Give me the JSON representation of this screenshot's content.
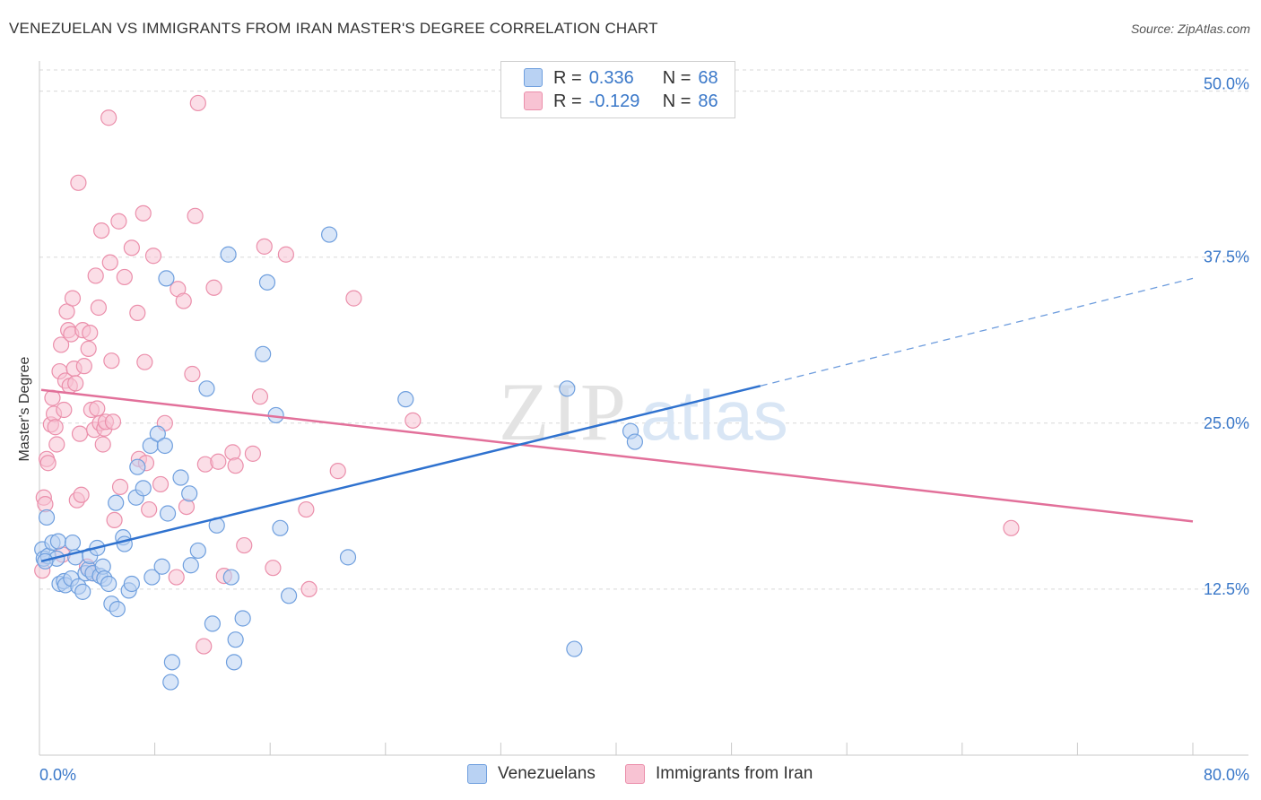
{
  "title": "VENEZUELAN VS IMMIGRANTS FROM IRAN MASTER'S DEGREE CORRELATION CHART",
  "source": "Source: ZipAtlas.com",
  "watermark": {
    "part1": "ZIP",
    "part2": "atlas"
  },
  "legend_top": [
    {
      "r_label": "R =",
      "r_value": "0.336",
      "n_label": "N =",
      "n_value": "68"
    },
    {
      "r_label": "R =",
      "r_value": "-0.129",
      "n_label": "N =",
      "n_value": "86"
    }
  ],
  "legend_bottom": [
    "Venezuelans",
    "Immigrants from Iran"
  ],
  "colors": {
    "blue_fill": "#b9d2f3",
    "blue_stroke": "#6f9fde",
    "blue_line": "#2f72cf",
    "pink_fill": "#f8c3d3",
    "pink_stroke": "#eb8fab",
    "pink_line": "#e2709a",
    "tick_label": "#3a78c9",
    "grid": "#d8d8d8"
  },
  "chart_data": {
    "type": "scatter",
    "title": "VENEZUELAN VS IMMIGRANTS FROM IRAN MASTER'S DEGREE CORRELATION CHART",
    "xlabel": "",
    "ylabel": "Master's Degree",
    "xlim": [
      0,
      80
    ],
    "ylim": [
      0,
      52
    ],
    "x_tick_labels": [
      "0.0%",
      "80.0%"
    ],
    "y_ticks": [
      12.5,
      25.0,
      37.5,
      50.0
    ],
    "y_tick_labels": [
      "12.5%",
      "25.0%",
      "37.5%",
      "50.0%"
    ],
    "grid": true,
    "legend_position": "top-center",
    "series": [
      {
        "name": "Venezuelans",
        "color": "#6f9fde",
        "r": 0.336,
        "n": 68,
        "trend": {
          "x": [
            0,
            50
          ],
          "y": [
            14.6,
            27.8
          ],
          "dashed_to": [
            80,
            35.9
          ]
        },
        "points": [
          [
            0.2,
            15.5
          ],
          [
            0.3,
            14.8
          ],
          [
            0.5,
            17.9
          ],
          [
            0.6,
            15.0
          ],
          [
            0.9,
            16.0
          ],
          [
            1.2,
            14.8
          ],
          [
            1.3,
            16.1
          ],
          [
            1.4,
            12.9
          ],
          [
            1.7,
            13.1
          ],
          [
            1.8,
            12.8
          ],
          [
            2.2,
            13.3
          ],
          [
            2.3,
            16.0
          ],
          [
            2.5,
            14.9
          ],
          [
            2.7,
            12.7
          ],
          [
            3.0,
            12.3
          ],
          [
            3.2,
            13.7
          ],
          [
            3.4,
            14.0
          ],
          [
            3.5,
            15.0
          ],
          [
            3.7,
            13.7
          ],
          [
            4.0,
            15.6
          ],
          [
            4.2,
            13.5
          ],
          [
            4.4,
            14.2
          ],
          [
            4.5,
            13.3
          ],
          [
            4.8,
            12.9
          ],
          [
            5.0,
            11.4
          ],
          [
            5.3,
            19.0
          ],
          [
            5.4,
            11.0
          ],
          [
            5.8,
            16.4
          ],
          [
            5.9,
            15.9
          ],
          [
            6.2,
            12.4
          ],
          [
            6.4,
            12.9
          ],
          [
            6.7,
            19.4
          ],
          [
            6.8,
            21.7
          ],
          [
            7.2,
            20.1
          ],
          [
            7.7,
            23.3
          ],
          [
            7.8,
            13.4
          ],
          [
            8.2,
            24.2
          ],
          [
            8.5,
            14.2
          ],
          [
            8.7,
            23.3
          ],
          [
            8.8,
            35.9
          ],
          [
            8.9,
            18.2
          ],
          [
            9.1,
            5.5
          ],
          [
            9.2,
            7.0
          ],
          [
            9.8,
            20.9
          ],
          [
            10.4,
            19.7
          ],
          [
            10.5,
            14.3
          ],
          [
            11.0,
            15.4
          ],
          [
            11.6,
            27.6
          ],
          [
            12.0,
            9.9
          ],
          [
            12.3,
            17.3
          ],
          [
            13.1,
            37.7
          ],
          [
            13.3,
            13.4
          ],
          [
            13.6,
            8.7
          ],
          [
            13.5,
            7.0
          ],
          [
            14.1,
            10.3
          ],
          [
            15.5,
            30.2
          ],
          [
            15.8,
            35.6
          ],
          [
            16.4,
            25.6
          ],
          [
            16.7,
            17.1
          ],
          [
            17.3,
            12.0
          ],
          [
            20.1,
            39.2
          ],
          [
            21.4,
            14.9
          ],
          [
            25.4,
            26.8
          ],
          [
            36.6,
            27.6
          ],
          [
            37.1,
            8.0
          ],
          [
            41.0,
            24.4
          ],
          [
            41.3,
            23.6
          ],
          [
            0.4,
            14.6
          ]
        ]
      },
      {
        "name": "Immigrants from Iran",
        "color": "#eb8fab",
        "r": -0.129,
        "n": 86,
        "trend": {
          "x": [
            0,
            80
          ],
          "y": [
            27.5,
            17.6
          ]
        },
        "points": [
          [
            0.2,
            13.9
          ],
          [
            0.3,
            19.4
          ],
          [
            0.4,
            18.9
          ],
          [
            0.5,
            22.3
          ],
          [
            0.6,
            22.0
          ],
          [
            0.8,
            24.9
          ],
          [
            0.9,
            26.9
          ],
          [
            1.0,
            25.7
          ],
          [
            1.1,
            24.7
          ],
          [
            1.2,
            23.4
          ],
          [
            1.4,
            28.9
          ],
          [
            1.5,
            30.9
          ],
          [
            1.6,
            15.1
          ],
          [
            1.7,
            26.0
          ],
          [
            1.8,
            28.2
          ],
          [
            1.9,
            33.4
          ],
          [
            2.0,
            32.0
          ],
          [
            2.1,
            27.8
          ],
          [
            2.2,
            31.7
          ],
          [
            2.3,
            34.4
          ],
          [
            2.4,
            29.1
          ],
          [
            2.5,
            28.0
          ],
          [
            2.6,
            19.2
          ],
          [
            2.7,
            43.1
          ],
          [
            2.8,
            24.2
          ],
          [
            2.9,
            19.6
          ],
          [
            3.0,
            32.0
          ],
          [
            3.1,
            29.3
          ],
          [
            3.3,
            14.2
          ],
          [
            3.4,
            30.6
          ],
          [
            3.5,
            31.8
          ],
          [
            3.6,
            26.0
          ],
          [
            3.7,
            13.7
          ],
          [
            3.8,
            24.5
          ],
          [
            3.9,
            36.1
          ],
          [
            4.0,
            26.1
          ],
          [
            4.1,
            33.7
          ],
          [
            4.2,
            25.0
          ],
          [
            4.3,
            39.5
          ],
          [
            4.4,
            23.4
          ],
          [
            4.5,
            24.6
          ],
          [
            4.6,
            25.1
          ],
          [
            4.8,
            48.0
          ],
          [
            4.9,
            37.1
          ],
          [
            5.0,
            29.7
          ],
          [
            5.1,
            25.1
          ],
          [
            5.2,
            17.7
          ],
          [
            5.5,
            40.2
          ],
          [
            5.6,
            20.2
          ],
          [
            5.9,
            36.0
          ],
          [
            6.4,
            38.2
          ],
          [
            6.8,
            33.3
          ],
          [
            6.9,
            22.3
          ],
          [
            7.2,
            40.8
          ],
          [
            7.3,
            29.6
          ],
          [
            7.4,
            22.0
          ],
          [
            7.6,
            18.5
          ],
          [
            7.9,
            37.6
          ],
          [
            8.4,
            20.4
          ],
          [
            8.7,
            25.0
          ],
          [
            9.5,
            13.4
          ],
          [
            9.6,
            35.1
          ],
          [
            10.0,
            34.2
          ],
          [
            10.2,
            18.7
          ],
          [
            10.6,
            28.7
          ],
          [
            10.8,
            40.6
          ],
          [
            11.0,
            49.1
          ],
          [
            11.4,
            8.2
          ],
          [
            11.5,
            21.9
          ],
          [
            12.1,
            35.2
          ],
          [
            12.8,
            13.5
          ],
          [
            13.4,
            22.8
          ],
          [
            13.6,
            21.8
          ],
          [
            14.2,
            15.8
          ],
          [
            14.8,
            22.7
          ],
          [
            15.3,
            27.0
          ],
          [
            15.6,
            38.3
          ],
          [
            16.2,
            14.1
          ],
          [
            17.1,
            37.7
          ],
          [
            18.5,
            18.5
          ],
          [
            18.7,
            12.5
          ],
          [
            20.7,
            21.4
          ],
          [
            21.8,
            34.4
          ],
          [
            25.9,
            25.2
          ],
          [
            67.4,
            17.1
          ],
          [
            12.4,
            22.1
          ]
        ]
      }
    ]
  }
}
